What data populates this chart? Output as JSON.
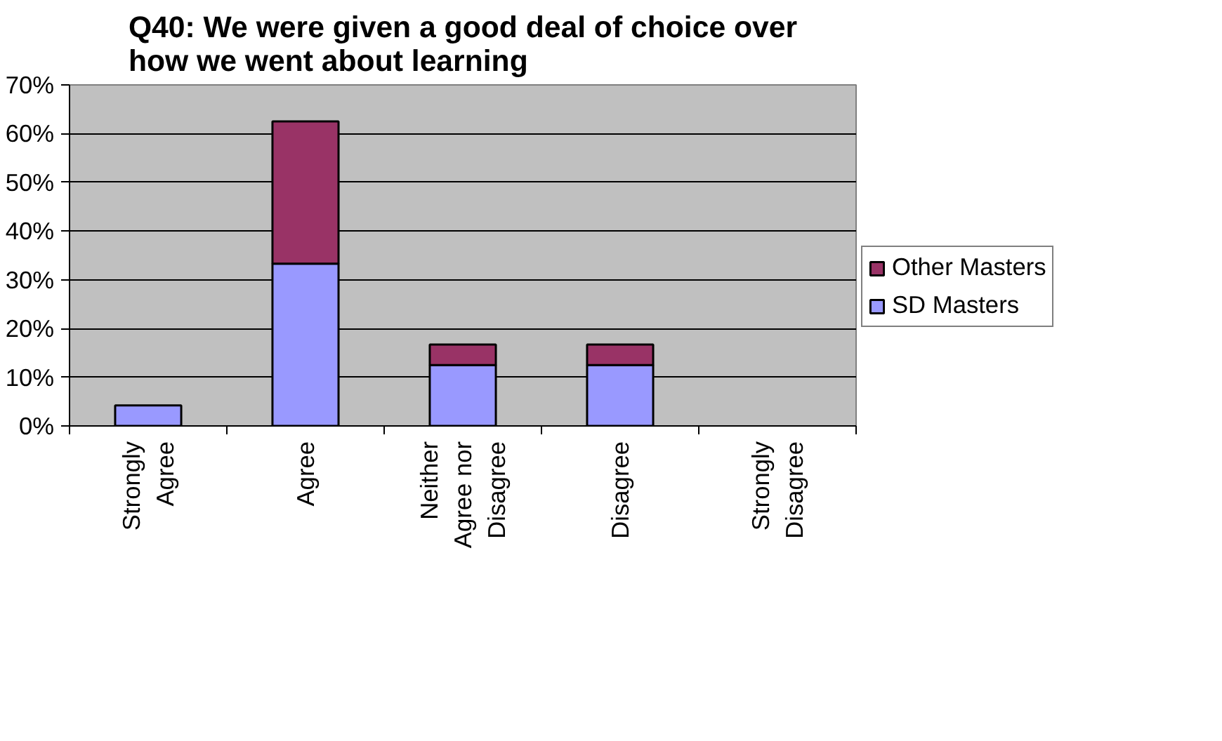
{
  "chart_data": {
    "type": "bar",
    "title": "Q40: We were given a good deal of choice over how we went about learning",
    "categories": [
      "Strongly Agree",
      "Agree",
      "Neither Agree nor Disagree",
      "Disagree",
      "Strongly Disagree"
    ],
    "stacked": true,
    "series": [
      {
        "name": "SD Masters",
        "color": "#9999ff",
        "values": [
          4.2,
          33.3,
          12.5,
          12.5,
          0
        ]
      },
      {
        "name": "Other Masters",
        "color": "#993366",
        "values": [
          0,
          29.2,
          4.2,
          4.2,
          0
        ]
      }
    ],
    "ylim": [
      0,
      70
    ],
    "yticks": [
      {
        "value": 0,
        "label": "0%"
      },
      {
        "value": 10,
        "label": "10%"
      },
      {
        "value": 20,
        "label": "20%"
      },
      {
        "value": 30,
        "label": "30%"
      },
      {
        "value": 40,
        "label": "40%"
      },
      {
        "value": 50,
        "label": "50%"
      },
      {
        "value": 60,
        "label": "60%"
      },
      {
        "value": 70,
        "label": "70%"
      }
    ],
    "grid": "y",
    "legend": "right"
  }
}
